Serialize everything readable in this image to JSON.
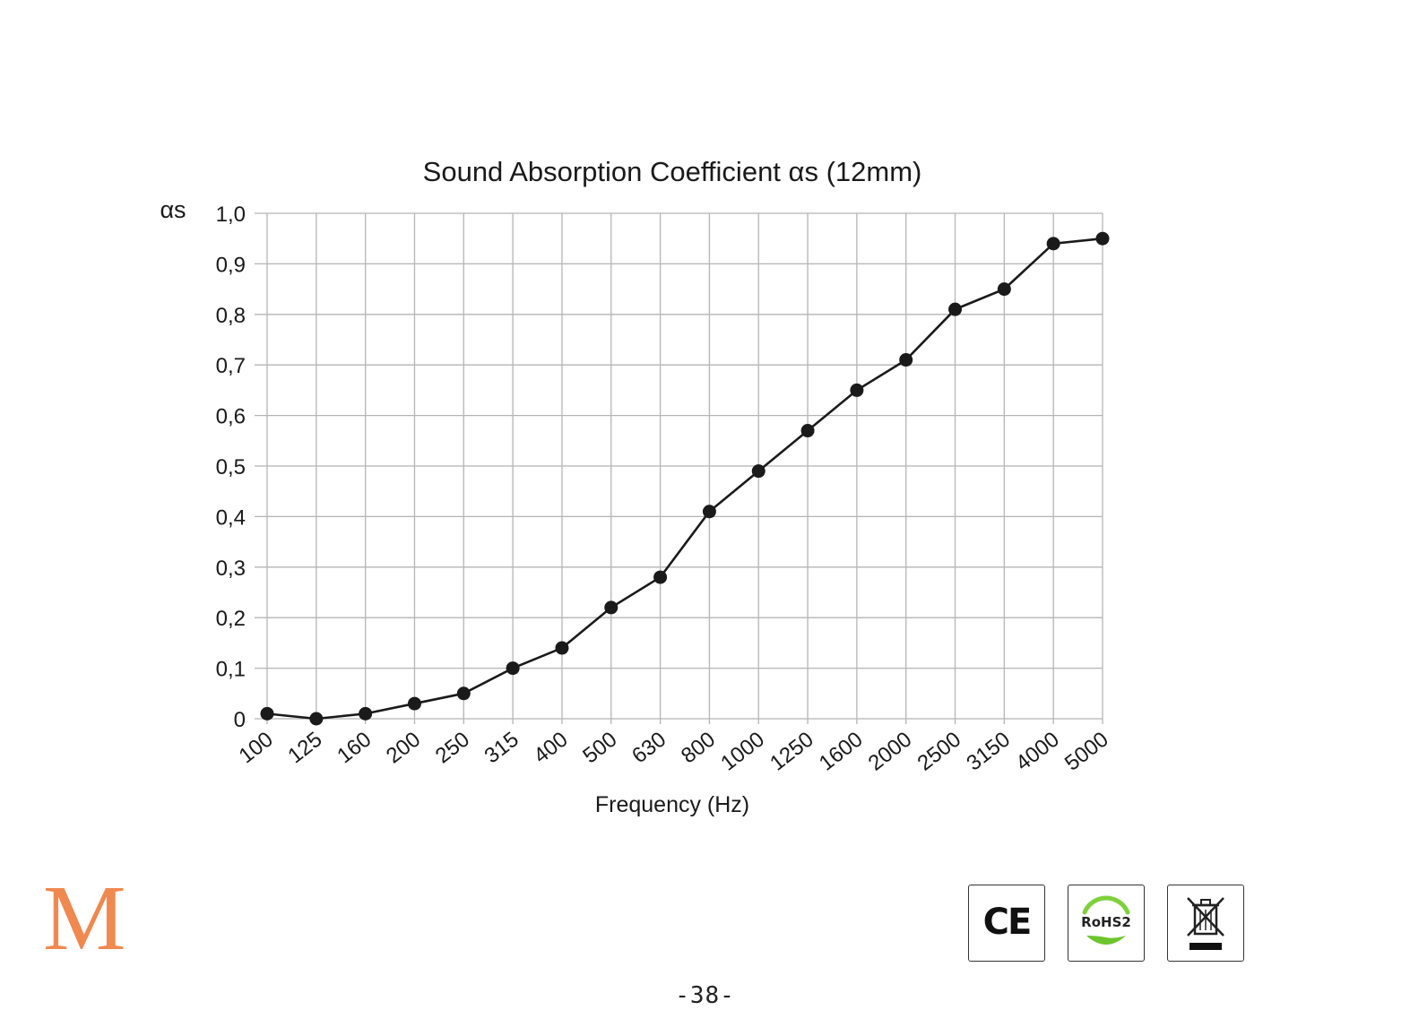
{
  "chart_data": {
    "type": "line",
    "title": "Sound Absorption Coefficient αs (12mm)",
    "xlabel": "Frequency (Hz)",
    "ylabel": "αs",
    "categories": [
      "100",
      "125",
      "160",
      "200",
      "250",
      "315",
      "400",
      "500",
      "630",
      "800",
      "1000",
      "1250",
      "1600",
      "2000",
      "2500",
      "3150",
      "4000",
      "5000"
    ],
    "y_tick_labels": [
      "0",
      "0,1",
      "0,2",
      "0,3",
      "0,4",
      "0,5",
      "0,6",
      "0,7",
      "0,8",
      "0,9",
      "1,0"
    ],
    "ylim": [
      0,
      1.0
    ],
    "grid": true,
    "series": [
      {
        "values": [
          0.01,
          0.0,
          0.01,
          0.03,
          0.05,
          0.1,
          0.14,
          0.22,
          0.28,
          0.41,
          0.49,
          0.57,
          0.65,
          0.71,
          0.81,
          0.85,
          0.94,
          0.95
        ]
      }
    ],
    "line_color": "#1a1a1a",
    "grid_color": "#b5b5b5"
  },
  "logo": {
    "letter": "M",
    "color": "#f0894f"
  },
  "badges": {
    "ce": {
      "label": "CE",
      "icon": "ce-mark-icon"
    },
    "rohs": {
      "label": "RoHS2",
      "icon": "rohs-leaf-icon"
    },
    "weee": {
      "icon": "crossed-bin-icon"
    }
  },
  "page_number": "-38-"
}
